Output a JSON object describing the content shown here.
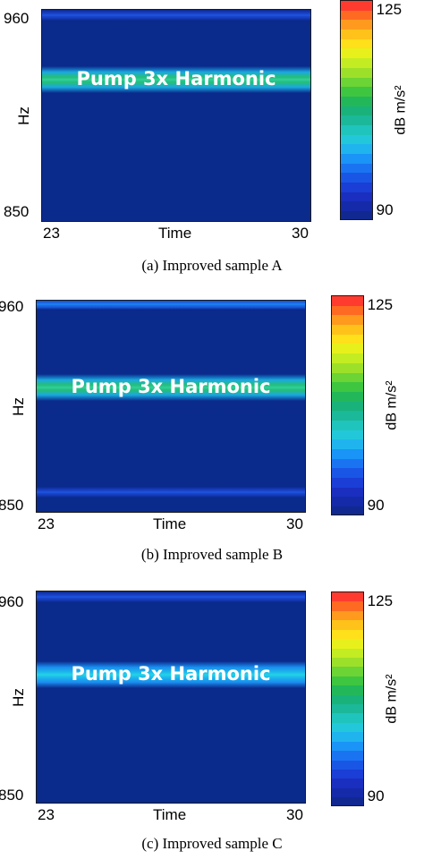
{
  "chart_data": [
    {
      "type": "heatmap",
      "title": "",
      "caption": "(a) Improved sample A",
      "xlabel": "Time",
      "ylabel": "Hz",
      "x_ticks": [
        "23",
        "30"
      ],
      "y_ticks": [
        "960",
        "850"
      ],
      "xlim": [
        23,
        30
      ],
      "ylim": [
        850,
        960
      ],
      "annotation": "Pump 3x Harmonic",
      "colorbar": {
        "label": "dB",
        "unit": "m/s²",
        "min": 90,
        "max": 125,
        "ticks": [
          "125",
          "90"
        ]
      },
      "features": [
        {
          "name": "Pump 3x Harmonic",
          "freq_hz": 924,
          "level_db": 112
        },
        {
          "name": "line",
          "freq_hz": 957,
          "level_db": 95
        }
      ]
    },
    {
      "type": "heatmap",
      "title": "",
      "caption": "(b) Improved sample B",
      "xlabel": "Time",
      "ylabel": "Hz",
      "x_ticks": [
        "23",
        "30"
      ],
      "y_ticks": [
        "960",
        "850"
      ],
      "xlim": [
        23,
        30
      ],
      "ylim": [
        850,
        960
      ],
      "annotation": "Pump 3x Harmonic",
      "colorbar": {
        "label": "dB",
        "unit": "m/s²",
        "min": 90,
        "max": 125,
        "ticks": [
          "125",
          "90"
        ]
      },
      "features": [
        {
          "name": "Pump 3x Harmonic",
          "freq_hz": 915,
          "level_db": 113
        },
        {
          "name": "line",
          "freq_hz": 958,
          "level_db": 100
        },
        {
          "name": "line",
          "freq_hz": 861,
          "level_db": 97
        }
      ]
    },
    {
      "type": "heatmap",
      "title": "",
      "caption": "(c) Improved sample C",
      "xlabel": "Time",
      "ylabel": "Hz",
      "x_ticks": [
        "23",
        "30"
      ],
      "y_ticks": [
        "960",
        "850"
      ],
      "xlim": [
        23,
        30
      ],
      "ylim": [
        850,
        960
      ],
      "annotation": "Pump 3x Harmonic",
      "colorbar": {
        "label": "dB",
        "unit": "m/s²",
        "min": 90,
        "max": 125,
        "ticks": [
          "125",
          "90"
        ]
      },
      "features": [
        {
          "name": "Pump 3x Harmonic",
          "freq_hz": 917,
          "level_db": 108
        },
        {
          "name": "line",
          "freq_hz": 957,
          "level_db": 96
        }
      ]
    }
  ],
  "colors": {
    "background": "#0a2a8c",
    "colormap": [
      "#ff3b30",
      "#ff6a22",
      "#ff9a1e",
      "#ffc21a",
      "#ffe01a",
      "#e8f01c",
      "#c4ec22",
      "#9de02a",
      "#6cd434",
      "#3ec640",
      "#22b85a",
      "#19b27a",
      "#1bb89a",
      "#1fc4bc",
      "#22c8da",
      "#20b4ee",
      "#1a94f6",
      "#1a74f2",
      "#1a56e6",
      "#1a3ed6",
      "#1a2ec0",
      "#152aa8",
      "#102890"
    ]
  }
}
